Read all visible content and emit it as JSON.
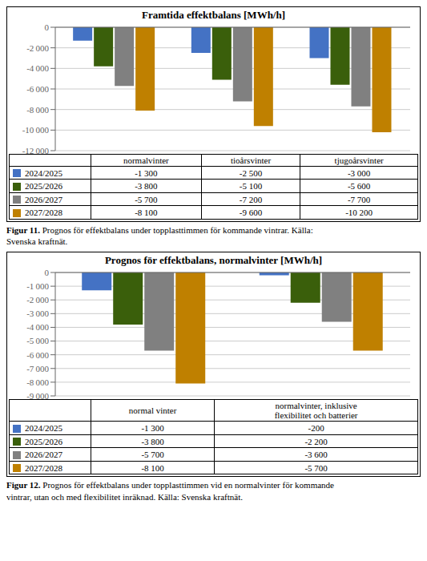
{
  "chart_data": [
    {
      "type": "bar",
      "title": "Framtida effektbalans [MWh/h]",
      "categories": [
        "normalvinter",
        "tioårsvinter",
        "tjugoårsvinter"
      ],
      "series": [
        {
          "name": "2024/2025",
          "color": "#4472c4",
          "values": [
            -1300,
            -2500,
            -3000
          ],
          "value_labels": [
            "-1 300",
            "-2 500",
            "-3 000"
          ]
        },
        {
          "name": "2025/2026",
          "color": "#3a5f0b",
          "values": [
            -3800,
            -5100,
            -5600
          ],
          "value_labels": [
            "-3 800",
            "-5 100",
            "-5 600"
          ]
        },
        {
          "name": "2026/2027",
          "color": "#808080",
          "values": [
            -5700,
            -7200,
            -7700
          ],
          "value_labels": [
            "-5 700",
            "-7 200",
            "-7 700"
          ]
        },
        {
          "name": "2027/2028",
          "color": "#bf8000",
          "values": [
            -8100,
            -9600,
            -10200
          ],
          "value_labels": [
            "-8 100",
            "-9 600",
            "-10 200"
          ]
        }
      ],
      "ylim": [
        -12000,
        0
      ],
      "yticks": [
        0,
        {
          "value": -2000,
          "label": "-2 000"
        },
        {
          "value": -4000,
          "label": "-4 000"
        },
        {
          "value": -6000,
          "label": "-6 000"
        },
        {
          "value": -8000,
          "label": "-8 000"
        },
        {
          "value": -10000,
          "label": "-10 000"
        },
        {
          "value": -12000,
          "label": "-12 000"
        }
      ],
      "grid": true,
      "tick_labels": "y",
      "annotations": [
        "Figur 11.",
        "Prognos för effektbalans under topplasttimmen för kommande vintrar. Källa:\nSvenska kraftnät."
      ]
    },
    {
      "type": "bar",
      "title": "Prognos för effektbalans, normalvinter [MWh/h]",
      "categories": [
        "normal vinter",
        "normalvinter, inklusive\nflexibilitet och batterier"
      ],
      "series": [
        {
          "name": "2024/2025",
          "color": "#4472c4",
          "values": [
            -1300,
            -200
          ],
          "value_labels": [
            "-1 300",
            "-200"
          ]
        },
        {
          "name": "2025/2026",
          "color": "#3a5f0b",
          "values": [
            -3800,
            -2200
          ],
          "value_labels": [
            "-3 800",
            "-2 200"
          ]
        },
        {
          "name": "2026/2027",
          "color": "#808080",
          "values": [
            -5700,
            -3600
          ],
          "value_labels": [
            "-5 700",
            "-3 600"
          ]
        },
        {
          "name": "2027/2028",
          "color": "#bf8000",
          "values": [
            -8100,
            -5700
          ],
          "value_labels": [
            "-8 100",
            "-5 700"
          ]
        }
      ],
      "ylim": [
        -9000,
        0
      ],
      "yticks": [
        0,
        {
          "value": -1000,
          "label": "-1 000"
        },
        {
          "value": -2000,
          "label": "-2 000"
        },
        {
          "value": -3000,
          "label": "-3 000"
        },
        {
          "value": -4000,
          "label": "-4 000"
        },
        {
          "value": -5000,
          "label": "-5 000"
        },
        {
          "value": -6000,
          "label": "-6 000"
        },
        {
          "value": -7000,
          "label": "-7 000"
        },
        {
          "value": -8000,
          "label": "-8 000"
        },
        {
          "value": -9000,
          "label": "-9 000"
        }
      ],
      "grid": true,
      "tick_labels": "y",
      "annotations": [
        "Figur 12.",
        "Prognos för effektbalans under topplasttimmen vid en normalvinter för kommande\nvintrar, utan och med flexibilitet inräknad. Källa: Svenska kraftnät."
      ]
    }
  ]
}
